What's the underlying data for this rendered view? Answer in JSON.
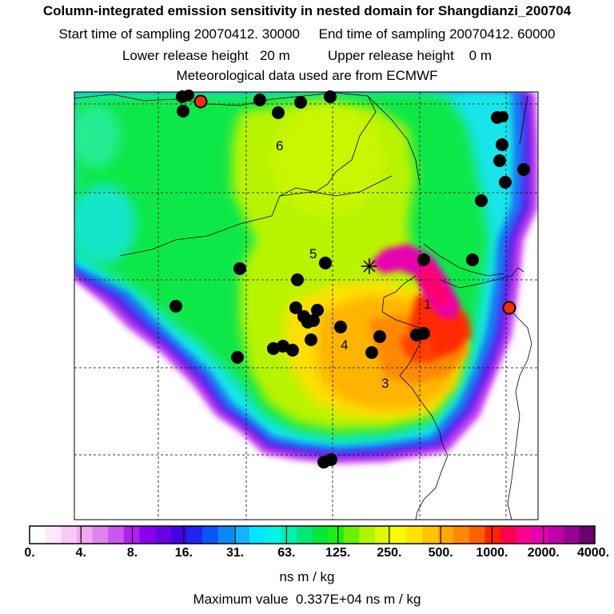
{
  "header": {
    "title": "Column-integrated emission sensitivity in nested domain for Shangdianzi_200704",
    "sampling_line": "Start time of sampling 20070412. 30000     End time of sampling 20070412. 60000",
    "release_line": "Lower release height   20 m          Upper release height    0 m",
    "met_line": "Meteorological data used are from ECMWF"
  },
  "map": {
    "field": "column-integrated emission sensitivity",
    "region_labels": [
      "1",
      "3",
      "4",
      "5",
      "6"
    ],
    "markers": {
      "black_dot_color": "#000000",
      "red_dot_color": "#ff2a00",
      "receptor_symbol": "star"
    }
  },
  "colorbar": {
    "colors": [
      "#ffffff",
      "#fde8fb",
      "#f8c9f4",
      "#f0a8ee",
      "#e083ec",
      "#cc55ee",
      "#b020f0",
      "#8a00f0",
      "#6a00e8",
      "#4400e4",
      "#1f24f0",
      "#0a55f5",
      "#0a88f8",
      "#14b4fc",
      "#00e6ff",
      "#00f4e8",
      "#00f0b4",
      "#00e878",
      "#00e83a",
      "#18f010",
      "#6cf000",
      "#b0f400",
      "#e0fa00",
      "#fafa00",
      "#ffe400",
      "#ffc600",
      "#ffa800",
      "#ff8800",
      "#ff6000",
      "#ff2400",
      "#ff0050",
      "#ff0090",
      "#e800b0",
      "#c000a8",
      "#9a0094",
      "#6a0070"
    ],
    "tick_labels": [
      "0.",
      "4.",
      "8.",
      "16.",
      "31.",
      "63.",
      "125.",
      "250.",
      "500.",
      "1000.",
      "2000.",
      "4000."
    ],
    "units": "ns m / kg"
  },
  "footer": {
    "max_value_line": "Maximum value  0.337E+04 ns m / kg"
  }
}
